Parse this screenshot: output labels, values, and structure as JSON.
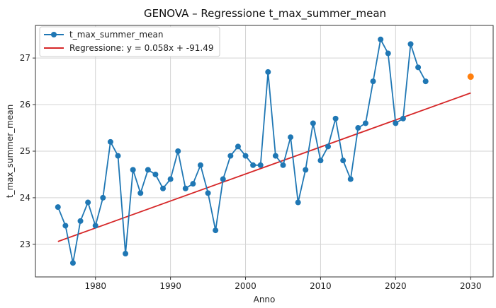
{
  "chart_data": {
    "type": "line",
    "title": "GENOVA – Regressione t_max_summer_mean",
    "xlabel": "Anno",
    "ylabel": "t_max_summer_mean",
    "xlim": [
      1972,
      2033
    ],
    "ylim": [
      22.3,
      27.7
    ],
    "xticks": [
      1980,
      1990,
      2000,
      2010,
      2020,
      2030
    ],
    "yticks": [
      23,
      24,
      25,
      26,
      27
    ],
    "grid": true,
    "legend_position": "top-left",
    "series": [
      {
        "name": "t_max_summer_mean",
        "color": "#1f77b4",
        "x": [
          1975,
          1976,
          1977,
          1978,
          1979,
          1980,
          1981,
          1982,
          1983,
          1984,
          1985,
          1986,
          1987,
          1988,
          1989,
          1990,
          1991,
          1992,
          1993,
          1994,
          1995,
          1996,
          1997,
          1998,
          1999,
          2000,
          2001,
          2002,
          2003,
          2004,
          2005,
          2006,
          2007,
          2008,
          2009,
          2010,
          2011,
          2012,
          2013,
          2014,
          2015,
          2016,
          2017,
          2018,
          2019,
          2020,
          2021,
          2022,
          2023,
          2024
        ],
        "y": [
          23.8,
          23.4,
          22.6,
          23.5,
          23.9,
          23.4,
          24.0,
          25.2,
          24.9,
          22.8,
          24.6,
          24.1,
          24.6,
          24.5,
          24.2,
          24.4,
          25.0,
          24.2,
          24.3,
          24.7,
          24.1,
          23.3,
          24.4,
          24.9,
          25.1,
          24.9,
          24.7,
          24.7,
          26.7,
          24.9,
          24.7,
          25.3,
          23.9,
          24.6,
          25.6,
          24.8,
          25.1,
          25.7,
          24.8,
          24.4,
          25.5,
          25.6,
          26.5,
          27.4,
          27.1,
          25.6,
          25.7,
          27.3,
          26.8,
          26.5
        ]
      },
      {
        "name": "Regressione: y = 0.058x + -91.49",
        "color": "#d62728",
        "slope": 0.058,
        "intercept": -91.49,
        "x_range": [
          1975,
          2030
        ]
      }
    ],
    "forecast_point": {
      "x": 2030,
      "y": 26.6,
      "color": "#ff7f0e"
    }
  }
}
